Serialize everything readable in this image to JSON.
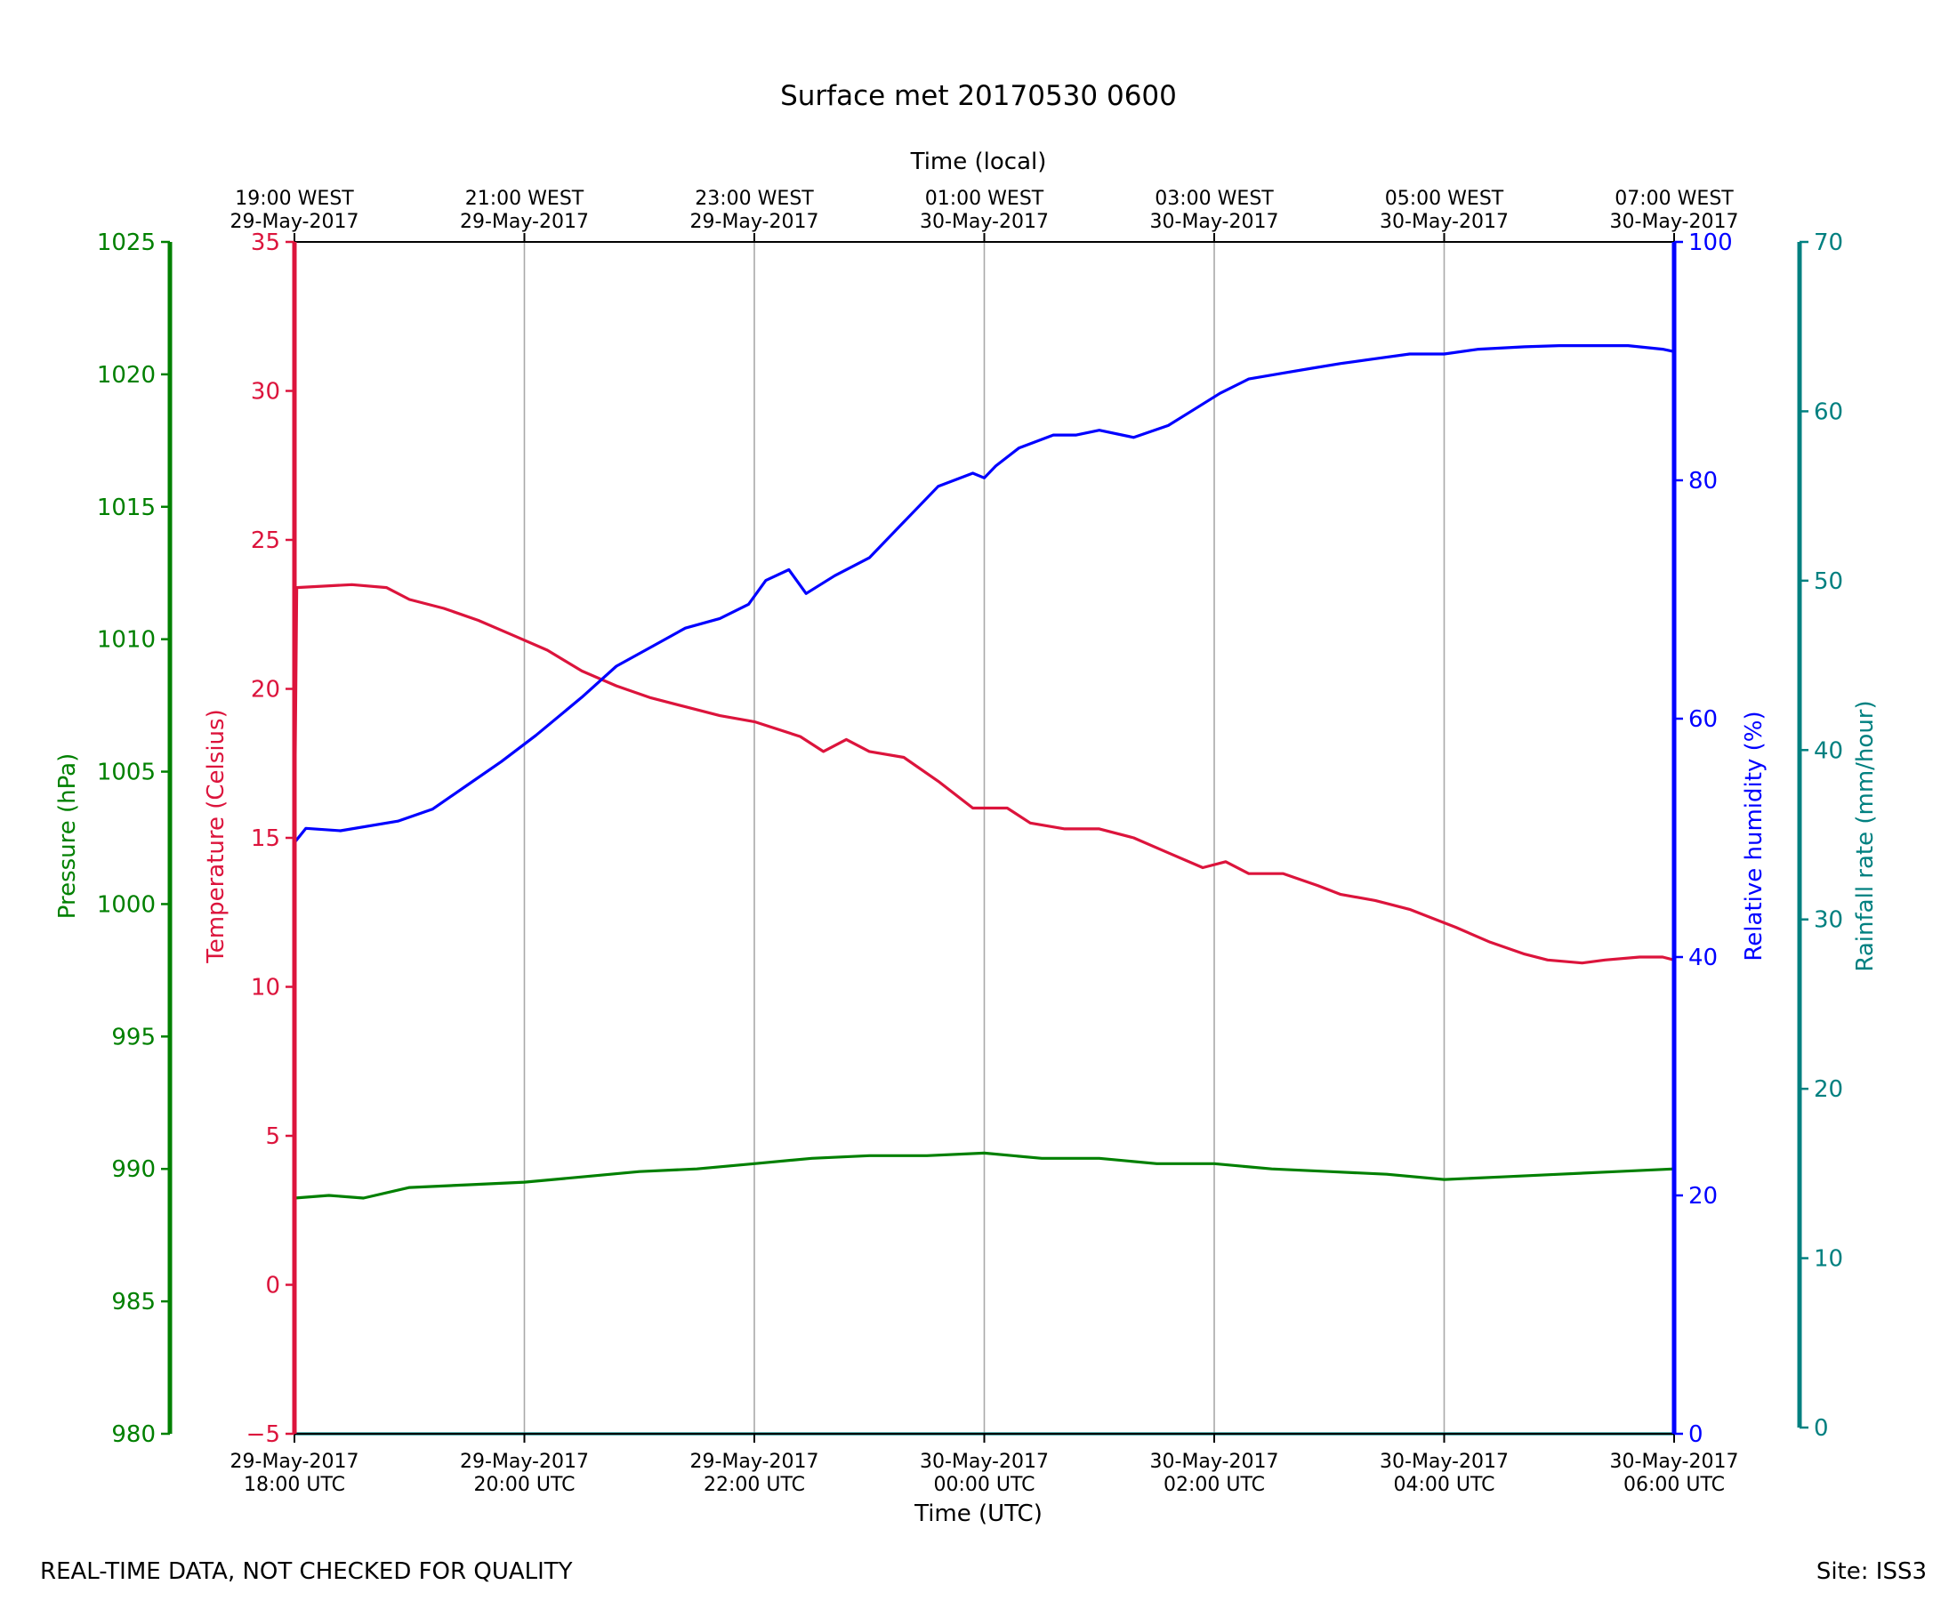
{
  "chart_data": {
    "type": "line",
    "title": "Surface met 20170530 0600",
    "xlabel": "Time (UTC)",
    "xlabel_top": "Time (local)",
    "x_range_hours_utc": [
      18,
      30
    ],
    "x_ticks_bottom": [
      {
        "hour": 18,
        "line1": "29-May-2017",
        "line2": "18:00 UTC"
      },
      {
        "hour": 20,
        "line1": "29-May-2017",
        "line2": "20:00 UTC"
      },
      {
        "hour": 22,
        "line1": "29-May-2017",
        "line2": "22:00 UTC"
      },
      {
        "hour": 24,
        "line1": "30-May-2017",
        "line2": "00:00 UTC"
      },
      {
        "hour": 26,
        "line1": "30-May-2017",
        "line2": "02:00 UTC"
      },
      {
        "hour": 28,
        "line1": "30-May-2017",
        "line2": "04:00 UTC"
      },
      {
        "hour": 30,
        "line1": "30-May-2017",
        "line2": "06:00 UTC"
      }
    ],
    "x_ticks_top": [
      {
        "hour": 18,
        "line1": "19:00 WEST",
        "line2": "29-May-2017"
      },
      {
        "hour": 20,
        "line1": "21:00 WEST",
        "line2": "29-May-2017"
      },
      {
        "hour": 22,
        "line1": "23:00 WEST",
        "line2": "29-May-2017"
      },
      {
        "hour": 24,
        "line1": "01:00 WEST",
        "line2": "30-May-2017"
      },
      {
        "hour": 26,
        "line1": "03:00 WEST",
        "line2": "30-May-2017"
      },
      {
        "hour": 28,
        "line1": "05:00 WEST",
        "line2": "30-May-2017"
      },
      {
        "hour": 30,
        "line1": "07:00 WEST",
        "line2": "30-May-2017"
      }
    ],
    "grid": "vertical",
    "axes": {
      "pressure": {
        "label": "Pressure (hPa)",
        "range": [
          980,
          1025
        ],
        "ticks": [
          980,
          985,
          990,
          995,
          1000,
          1005,
          1010,
          1015,
          1020,
          1025
        ],
        "color": "#008000"
      },
      "temperature": {
        "label": "Temperature (Celsius)",
        "range": [
          -5,
          35
        ],
        "ticks": [
          -5,
          0,
          5,
          10,
          15,
          20,
          25,
          30,
          35
        ],
        "color": "#dc143c"
      },
      "humidity": {
        "label": "Relative humidity (%)",
        "range": [
          0,
          100
        ],
        "ticks": [
          0,
          20,
          40,
          60,
          80,
          100
        ],
        "color": "#0000ff"
      },
      "rainfall": {
        "label": "Rainfall rate (mm/hour)",
        "range": [
          0,
          70
        ],
        "ticks": [
          0,
          10,
          20,
          30,
          40,
          50,
          60,
          70
        ],
        "color": "#008080"
      }
    },
    "series": [
      {
        "axis": "temperature",
        "color": "#dc143c",
        "points": [
          [
            18.0,
            14.8
          ],
          [
            18.02,
            23.4
          ],
          [
            18.5,
            23.5
          ],
          [
            18.8,
            23.4
          ],
          [
            19.0,
            23.0
          ],
          [
            19.3,
            22.7
          ],
          [
            19.6,
            22.3
          ],
          [
            19.9,
            21.8
          ],
          [
            20.2,
            21.3
          ],
          [
            20.5,
            20.6
          ],
          [
            20.8,
            20.1
          ],
          [
            21.1,
            19.7
          ],
          [
            21.4,
            19.4
          ],
          [
            21.7,
            19.1
          ],
          [
            22.0,
            18.9
          ],
          [
            22.4,
            18.4
          ],
          [
            22.6,
            17.9
          ],
          [
            22.8,
            18.3
          ],
          [
            23.0,
            17.9
          ],
          [
            23.3,
            17.7
          ],
          [
            23.6,
            16.9
          ],
          [
            23.9,
            16.0
          ],
          [
            24.2,
            16.0
          ],
          [
            24.4,
            15.5
          ],
          [
            24.7,
            15.3
          ],
          [
            25.0,
            15.3
          ],
          [
            25.3,
            15.0
          ],
          [
            25.6,
            14.5
          ],
          [
            25.9,
            14.0
          ],
          [
            26.1,
            14.2
          ],
          [
            26.3,
            13.8
          ],
          [
            26.6,
            13.8
          ],
          [
            26.9,
            13.4
          ],
          [
            27.1,
            13.1
          ],
          [
            27.4,
            12.9
          ],
          [
            27.7,
            12.6
          ],
          [
            27.9,
            12.3
          ],
          [
            28.1,
            12.0
          ],
          [
            28.4,
            11.5
          ],
          [
            28.7,
            11.1
          ],
          [
            28.9,
            10.9
          ],
          [
            29.2,
            10.8
          ],
          [
            29.4,
            10.9
          ],
          [
            29.7,
            11.0
          ],
          [
            29.9,
            11.0
          ],
          [
            30.0,
            10.9
          ]
        ]
      },
      {
        "axis": "humidity",
        "color": "#0000ff",
        "points": [
          [
            18.0,
            49.6
          ],
          [
            18.1,
            50.8
          ],
          [
            18.4,
            50.6
          ],
          [
            18.9,
            51.4
          ],
          [
            19.2,
            52.4
          ],
          [
            19.5,
            54.4
          ],
          [
            19.8,
            56.4
          ],
          [
            20.1,
            58.6
          ],
          [
            20.5,
            61.8
          ],
          [
            20.8,
            64.4
          ],
          [
            21.1,
            66.0
          ],
          [
            21.4,
            67.6
          ],
          [
            21.7,
            68.4
          ],
          [
            21.95,
            69.6
          ],
          [
            22.1,
            71.6
          ],
          [
            22.3,
            72.5
          ],
          [
            22.45,
            70.5
          ],
          [
            22.7,
            72.0
          ],
          [
            23.0,
            73.5
          ],
          [
            23.3,
            76.5
          ],
          [
            23.6,
            79.5
          ],
          [
            23.9,
            80.6
          ],
          [
            24.0,
            80.2
          ],
          [
            24.1,
            81.2
          ],
          [
            24.3,
            82.7
          ],
          [
            24.6,
            83.8
          ],
          [
            24.8,
            83.8
          ],
          [
            25.0,
            84.2
          ],
          [
            25.3,
            83.6
          ],
          [
            25.6,
            84.6
          ],
          [
            25.8,
            85.8
          ],
          [
            26.05,
            87.3
          ],
          [
            26.3,
            88.5
          ],
          [
            26.6,
            89.0
          ],
          [
            26.85,
            89.4
          ],
          [
            27.1,
            89.8
          ],
          [
            27.4,
            90.2
          ],
          [
            27.7,
            90.6
          ],
          [
            28.0,
            90.6
          ],
          [
            28.3,
            91.0
          ],
          [
            28.7,
            91.2
          ],
          [
            29.0,
            91.3
          ],
          [
            29.3,
            91.3
          ],
          [
            29.6,
            91.3
          ],
          [
            29.9,
            91.0
          ],
          [
            30.0,
            90.8
          ]
        ]
      },
      {
        "axis": "pressure",
        "color": "#008000",
        "points": [
          [
            18.0,
            988.9
          ],
          [
            18.3,
            989.0
          ],
          [
            18.6,
            988.9
          ],
          [
            19.0,
            989.3
          ],
          [
            19.5,
            989.4
          ],
          [
            20.0,
            989.5
          ],
          [
            20.5,
            989.7
          ],
          [
            21.0,
            989.9
          ],
          [
            21.5,
            990.0
          ],
          [
            22.0,
            990.2
          ],
          [
            22.5,
            990.4
          ],
          [
            23.0,
            990.5
          ],
          [
            23.5,
            990.5
          ],
          [
            24.0,
            990.6
          ],
          [
            24.5,
            990.4
          ],
          [
            25.0,
            990.4
          ],
          [
            25.5,
            990.2
          ],
          [
            26.0,
            990.2
          ],
          [
            26.5,
            990.0
          ],
          [
            27.0,
            989.9
          ],
          [
            27.5,
            989.8
          ],
          [
            28.0,
            989.6
          ],
          [
            28.5,
            989.7
          ],
          [
            29.0,
            989.8
          ],
          [
            29.5,
            989.9
          ],
          [
            30.0,
            990.0
          ]
        ]
      },
      {
        "axis": "rainfall",
        "color": "#008080",
        "points": [
          [
            18.0,
            0.0
          ],
          [
            30.0,
            0.0
          ]
        ]
      }
    ]
  },
  "footer": {
    "note": "REAL-TIME DATA, NOT CHECKED FOR QUALITY",
    "site": "Site: ISS3"
  }
}
